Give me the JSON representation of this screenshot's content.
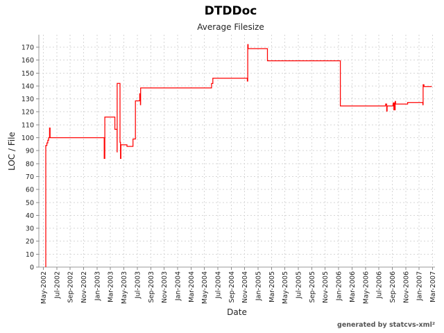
{
  "chart_data": {
    "type": "line",
    "title": "DTDDoc",
    "subtitle": "Average Filesize",
    "xlabel": "Date",
    "ylabel": "LOC / File",
    "x_range": [
      "2002-05-01",
      "2007-03-01"
    ],
    "ylim": [
      0,
      178
    ],
    "y_ticks": [
      0,
      10,
      20,
      30,
      40,
      50,
      60,
      70,
      80,
      90,
      100,
      110,
      120,
      130,
      140,
      150,
      160,
      170
    ],
    "x_tick_labels": [
      "May-2002",
      "Jul-2002",
      "Sep-2002",
      "Nov-2002",
      "Jan-2003",
      "Mar-2003",
      "May-2003",
      "Jul-2003",
      "Sep-2003",
      "Nov-2003",
      "Jan-2004",
      "Mar-2004",
      "May-2004",
      "Jul-2004",
      "Sep-2004",
      "Nov-2004",
      "Jan-2005",
      "Mar-2005",
      "May-2005",
      "Jul-2005",
      "Sep-2005",
      "Nov-2005",
      "Jan-2006",
      "Mar-2006",
      "May-2006",
      "Jul-2006",
      "Sep-2006",
      "Nov-2006",
      "Jan-2007",
      "Mar-2007"
    ],
    "grid": true,
    "legend": false,
    "line_color": "#ff0000",
    "grid_color": "#d6d6d6",
    "axis_color": "#9a9a9a",
    "tick_color": "#888888",
    "series": [
      {
        "name": "Average Filesize",
        "step": true,
        "points": [
          [
            "2002-05-12",
            0
          ],
          [
            "2002-05-12",
            94
          ],
          [
            "2002-05-17",
            94
          ],
          [
            "2002-05-17",
            96
          ],
          [
            "2002-05-21",
            96
          ],
          [
            "2002-05-21",
            98
          ],
          [
            "2002-05-25",
            98
          ],
          [
            "2002-05-25",
            100
          ],
          [
            "2002-05-29",
            100
          ],
          [
            "2002-05-29",
            107.5
          ],
          [
            "2002-06-01",
            107.5
          ],
          [
            "2002-06-01",
            100
          ],
          [
            "2003-02-03",
            100
          ],
          [
            "2003-02-03",
            84
          ],
          [
            "2003-02-06",
            84
          ],
          [
            "2003-02-06",
            116
          ],
          [
            "2003-03-21",
            116
          ],
          [
            "2003-03-21",
            106.5
          ],
          [
            "2003-03-31",
            106.5
          ],
          [
            "2003-03-31",
            89
          ],
          [
            "2003-04-01",
            89
          ],
          [
            "2003-04-01",
            142
          ],
          [
            "2003-04-14",
            142
          ],
          [
            "2003-04-14",
            96.5
          ],
          [
            "2003-04-16",
            96.5
          ],
          [
            "2003-04-16",
            84
          ],
          [
            "2003-04-18",
            84
          ],
          [
            "2003-04-18",
            94.5
          ],
          [
            "2003-05-15",
            94.5
          ],
          [
            "2003-05-15",
            93.3
          ],
          [
            "2003-06-12",
            93.3
          ],
          [
            "2003-06-12",
            99
          ],
          [
            "2003-06-23",
            99
          ],
          [
            "2003-06-23",
            128.5
          ],
          [
            "2003-07-12",
            128.5
          ],
          [
            "2003-07-12",
            134
          ],
          [
            "2003-07-15",
            134
          ],
          [
            "2003-07-15",
            125.5
          ],
          [
            "2003-07-16",
            125.5
          ],
          [
            "2003-07-16",
            138.5
          ],
          [
            "2004-06-03",
            138.5
          ],
          [
            "2004-06-03",
            141.9
          ],
          [
            "2004-06-09",
            141.9
          ],
          [
            "2004-06-09",
            146
          ],
          [
            "2004-11-13",
            146
          ],
          [
            "2004-11-13",
            143.8
          ],
          [
            "2004-11-15",
            143.8
          ],
          [
            "2004-11-15",
            172
          ],
          [
            "2004-11-17",
            172
          ],
          [
            "2004-11-17",
            168.9
          ],
          [
            "2005-02-13",
            168.9
          ],
          [
            "2005-02-13",
            159.5
          ],
          [
            "2006-01-09",
            159.5
          ],
          [
            "2006-01-09",
            124.5
          ],
          [
            "2006-08-01",
            124.5
          ],
          [
            "2006-08-01",
            126
          ],
          [
            "2006-08-06",
            126
          ],
          [
            "2006-08-06",
            120.6
          ],
          [
            "2006-08-08",
            120.6
          ],
          [
            "2006-08-08",
            124.5
          ],
          [
            "2006-09-05",
            124.5
          ],
          [
            "2006-09-05",
            126.9
          ],
          [
            "2006-09-08",
            126.9
          ],
          [
            "2006-09-08",
            121.6
          ],
          [
            "2006-09-10",
            121.6
          ],
          [
            "2006-09-10",
            126.9
          ],
          [
            "2006-09-12",
            126.9
          ],
          [
            "2006-09-12",
            121.6
          ],
          [
            "2006-09-14",
            121.6
          ],
          [
            "2006-09-14",
            128
          ],
          [
            "2006-09-16",
            128
          ],
          [
            "2006-09-16",
            126
          ],
          [
            "2006-11-10",
            126
          ],
          [
            "2006-11-10",
            127.2
          ],
          [
            "2007-01-18",
            127.2
          ],
          [
            "2007-01-18",
            125.5
          ],
          [
            "2007-01-19",
            125.5
          ],
          [
            "2007-01-19",
            141
          ],
          [
            "2007-01-23",
            141
          ],
          [
            "2007-01-23",
            139.6
          ],
          [
            "2007-02-28",
            139.6
          ]
        ]
      }
    ]
  },
  "footer": {
    "text": "generated by statcvs-xml²"
  }
}
